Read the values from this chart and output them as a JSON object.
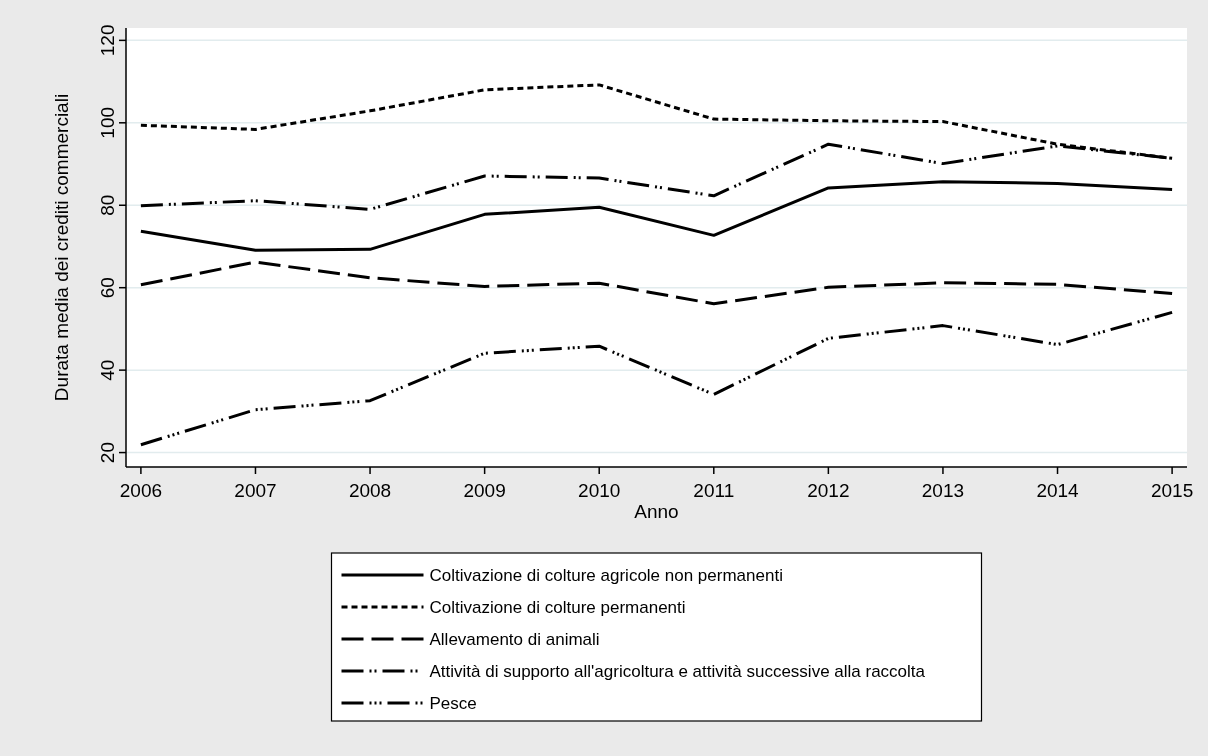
{
  "chart_data": {
    "type": "line",
    "xlabel": "Anno",
    "ylabel": "Durata media dei crediti commerciali",
    "x": [
      2006,
      2007,
      2008,
      2009,
      2010,
      2011,
      2012,
      2013,
      2014,
      2015
    ],
    "xlim": [
      2005.87,
      2015.13
    ],
    "xticks": [
      2006,
      2007,
      2008,
      2009,
      2010,
      2011,
      2012,
      2013,
      2014,
      2015
    ],
    "ylim": [
      16.5,
      123
    ],
    "yticks": [
      20,
      40,
      60,
      80,
      100,
      120
    ],
    "grid": "y",
    "legend": "bottom",
    "series": [
      {
        "name": "Coltivazione di colture agricole non permanenti",
        "color": "#000000",
        "line_style": "solid",
        "values": [
          73.7,
          69.1,
          69.3,
          77.8,
          79.5,
          72.7,
          84.2,
          85.7,
          85.3,
          83.8
        ]
      },
      {
        "name": "Coltivazione di colture permanenti",
        "color": "#000000",
        "line_style": "dotted",
        "values": [
          99.4,
          98.4,
          102.9,
          108.0,
          109.2,
          100.9,
          100.5,
          100.3,
          94.8,
          91.4
        ]
      },
      {
        "name": "Allevamento di animali",
        "color": "#000000",
        "line_style": "dashed",
        "values": [
          60.7,
          66.2,
          62.4,
          60.3,
          61.1,
          56.1,
          60.1,
          61.2,
          60.8,
          58.6
        ]
      },
      {
        "name": "Attività di supporto all'agricoltura e attività successive alla raccolta",
        "color": "#000000",
        "line_style": "dashdot",
        "values": [
          79.9,
          81.1,
          79.0,
          87.1,
          86.6,
          82.3,
          94.8,
          90.1,
          94.4,
          91.4
        ]
      },
      {
        "name": "Pesce",
        "color": "#000000",
        "line_style": "dashdotdot",
        "values": [
          21.9,
          30.4,
          32.6,
          44.1,
          45.8,
          34.1,
          47.7,
          50.8,
          46.2,
          54.0
        ]
      }
    ]
  }
}
